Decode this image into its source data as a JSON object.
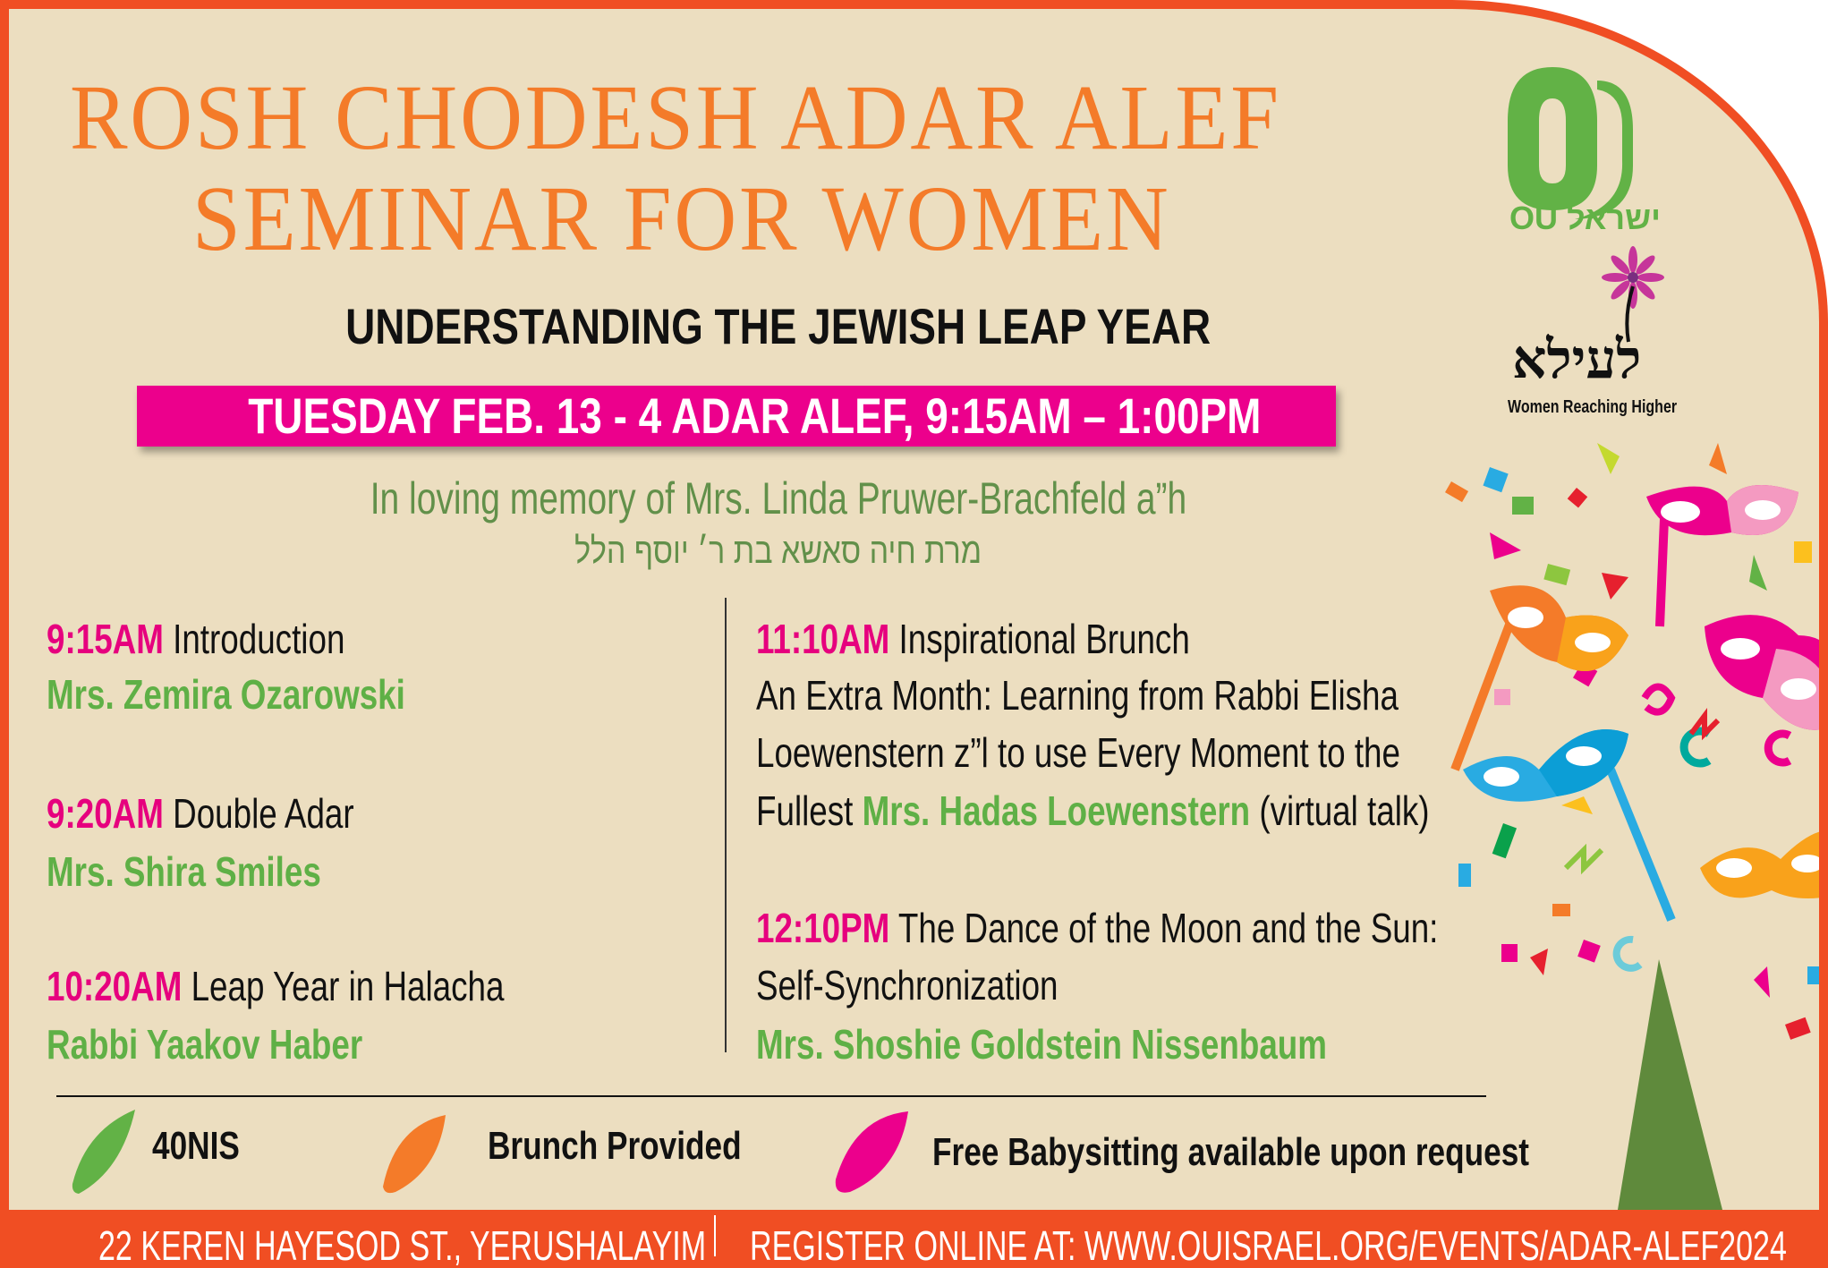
{
  "title": {
    "line1": "ROSH CHODESH ADAR ALEF",
    "line2": "SEMINAR FOR WOMEN"
  },
  "subtitle": "UNDERSTANDING THE JEWISH LEAP YEAR",
  "date_banner": "TUESDAY FEB. 13  - 4 ADAR ALEF, 9:15AM – 1:00PM",
  "dedication": {
    "english": "In loving memory of Mrs. Linda Pruwer-Brachfeld a”h",
    "hebrew": "מרת חיה סאשא בת ר׳ יוסף הלל"
  },
  "logos": {
    "ou": {
      "text": "OU ישראל",
      "color": "#62b246"
    },
    "laaila": {
      "hebrew": "לעילא",
      "tagline": "Women Reaching Higher"
    }
  },
  "schedule": {
    "left": [
      {
        "time": "9:15AM",
        "title": "Introduction",
        "speaker": "Mrs. Zemira Ozarowski"
      },
      {
        "time": "9:20AM",
        "title": "Double Adar",
        "speaker": "Mrs. Shira Smiles"
      },
      {
        "time": "10:20AM",
        "title": "Leap Year in Halacha",
        "speaker": "Rabbi Yaakov Haber"
      }
    ],
    "right": [
      {
        "time": "11:10AM",
        "title": "Inspirational Brunch",
        "desc_lines": [
          "An Extra Month: Learning from Rabbi Elisha",
          "Loewenstern z”l to use Every Moment to the",
          "Fullest"
        ],
        "speaker": "Mrs. Hadas Loewenstern",
        "note": "(virtual talk)"
      },
      {
        "time": "12:10PM",
        "title": "The Dance of the Moon and the Sun:",
        "desc_lines": [
          "Self-Synchronization"
        ],
        "speaker": "Mrs. Shoshie Goldstein  Nissenbaum"
      }
    ]
  },
  "features": [
    {
      "label": "40NIS",
      "color": "#62b246"
    },
    {
      "label": "Brunch Provided",
      "color": "#f47b29"
    },
    {
      "label": "Free Babysitting available upon request",
      "color": "#ec008c"
    }
  ],
  "footer": {
    "address": "22 KEREN HAYESOD ST., YERUSHALAYIM",
    "register": "REGISTER ONLINE AT: WWW.OUISRAEL.ORG/EVENTS/ADAR-ALEF2024"
  },
  "colors": {
    "border": "#f04e23",
    "background": "#ecdec0",
    "title": "#f47b29",
    "banner": "#ec008c",
    "time": "#e6007e",
    "speaker": "#5fb046",
    "dedication": "#62904a"
  }
}
